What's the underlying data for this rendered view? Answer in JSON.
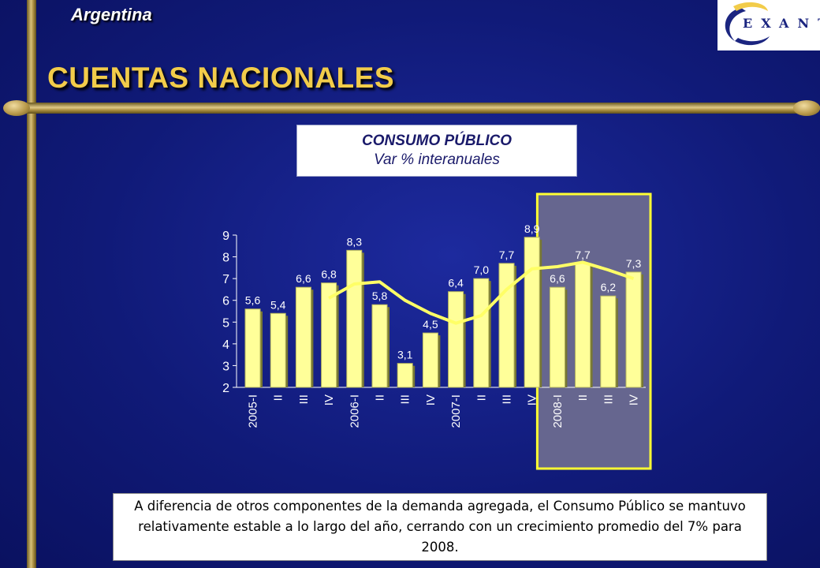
{
  "header": {
    "country": "Argentina",
    "title": "CUENTAS NACIONALES",
    "logo_text": "EXANTE"
  },
  "chart_box": {
    "title": "CONSUMO PÚBLICO",
    "subtitle": "Var % interanuales"
  },
  "chart_data": {
    "type": "bar",
    "title": "CONSUMO PÚBLICO",
    "subtitle": "Var % interanuales",
    "categories": [
      "2005-I",
      "II",
      "III",
      "IV",
      "2006-I",
      "II",
      "III",
      "IV",
      "2007-I",
      "II",
      "III",
      "IV",
      "2008-I",
      "II",
      "III",
      "IV"
    ],
    "values": [
      5.6,
      5.4,
      6.6,
      6.8,
      8.3,
      5.8,
      3.1,
      4.5,
      6.4,
      7.0,
      7.7,
      8.9,
      6.6,
      7.7,
      6.2,
      7.3
    ],
    "value_labels": [
      "5,6",
      "5,4",
      "6,6",
      "6,8",
      "8,3",
      "5,8",
      "3,1",
      "4,5",
      "6,4",
      "7,0",
      "7,7",
      "8,9",
      "6,6",
      "7,7",
      "6,2",
      "7,3"
    ],
    "line_values": [
      null,
      null,
      null,
      6.1,
      6.75,
      6.85,
      6.0,
      5.4,
      4.95,
      5.3,
      6.5,
      7.45,
      7.55,
      7.75,
      7.4,
      7.0
    ],
    "ylim": [
      2,
      9
    ],
    "yticks": [
      2,
      3,
      4,
      5,
      6,
      7,
      8,
      9
    ],
    "highlight_range": [
      12,
      15
    ],
    "colors": {
      "bar": "#ffff99",
      "line": "#ffff66",
      "highlight_fill": "#66668f",
      "highlight_border": "#ffff33",
      "text": "#ffffff"
    }
  },
  "note": {
    "text": "A diferencia de otros componentes de la demanda agregada, el Consumo Público se mantuvo relativamente estable a lo largo del año, cerrando con un crecimiento promedio del 7% para 2008."
  }
}
